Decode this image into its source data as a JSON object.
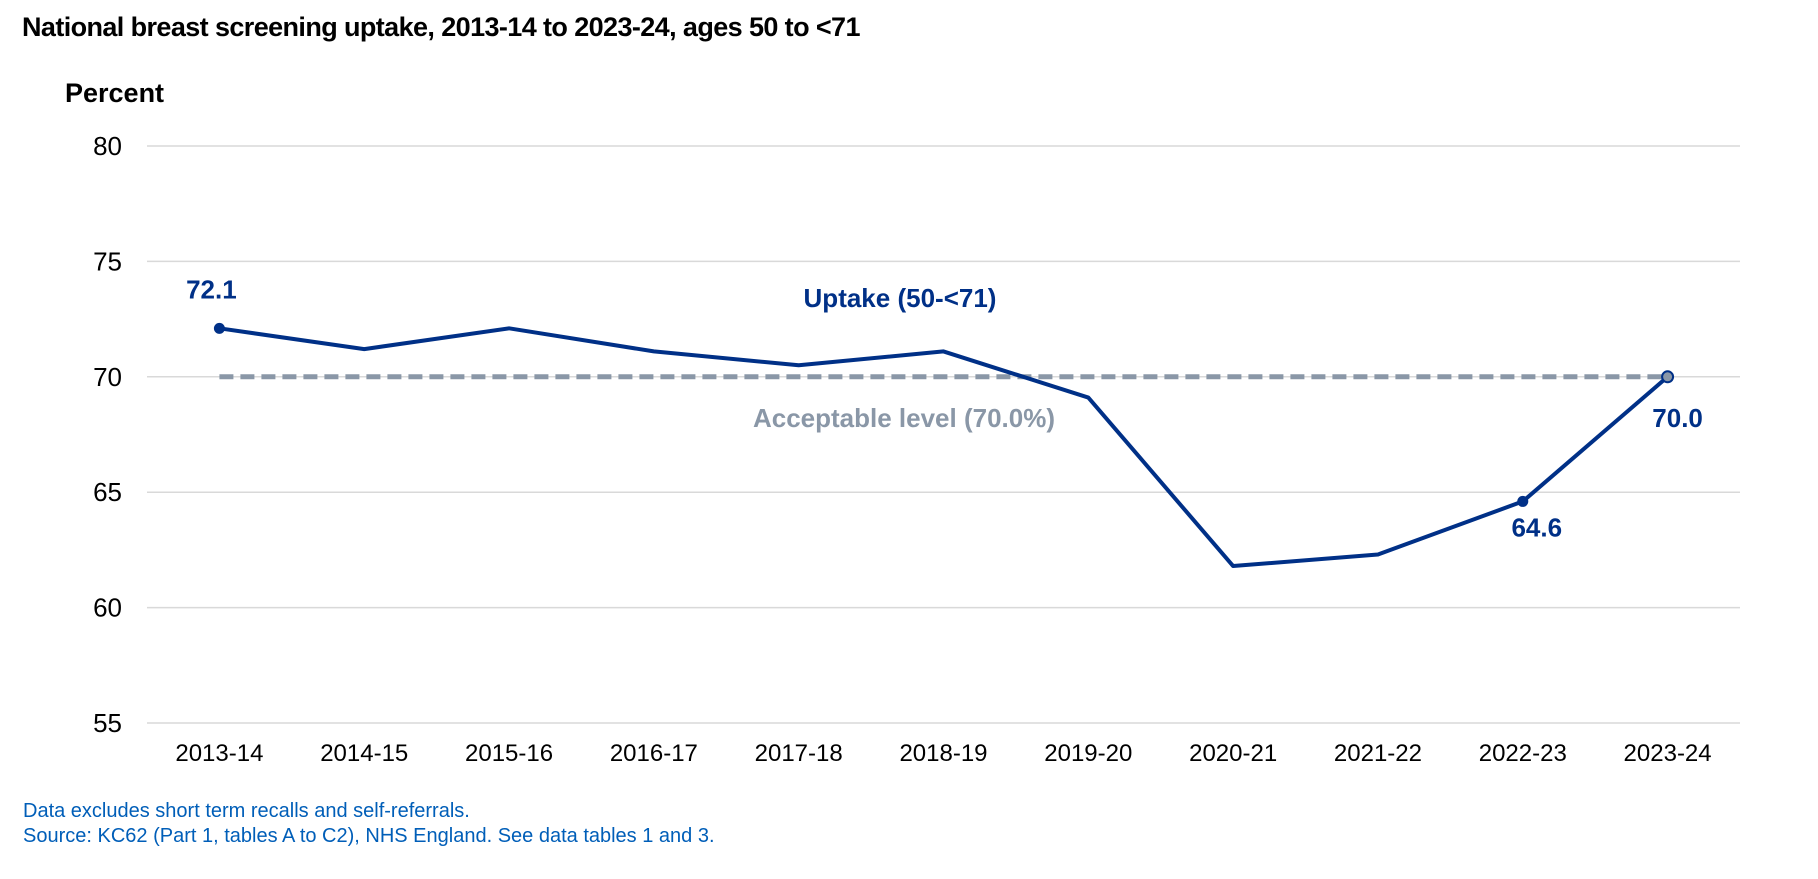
{
  "chart_data": {
    "type": "line",
    "title": "National breast screening uptake, 2013-14 to 2023-24, ages 50 to <71",
    "ylabel": "Percent",
    "xlabel": "",
    "ylim": [
      55,
      80
    ],
    "yticks": [
      "55",
      "60",
      "65",
      "70",
      "75",
      "80"
    ],
    "grid": "horizontal",
    "categories": [
      "2013-14",
      "2014-15",
      "2015-16",
      "2016-17",
      "2017-18",
      "2018-19",
      "2019-20",
      "2020-21",
      "2021-22",
      "2022-23",
      "2023-24"
    ],
    "series": [
      {
        "name": "Uptake (50-<71)",
        "color": "#003087",
        "values": [
          72.1,
          71.2,
          72.1,
          71.1,
          70.5,
          71.1,
          69.1,
          61.8,
          62.3,
          64.6,
          70.0
        ],
        "data_labels": [
          {
            "category": "2013-14",
            "value": 72.1,
            "text": "72.1"
          },
          {
            "category": "2022-23",
            "value": 64.6,
            "text": "64.6"
          },
          {
            "category": "2023-24",
            "value": 70.0,
            "text": "70.0"
          }
        ]
      }
    ],
    "reference_line": {
      "name": "Acceptable level (70.0%)",
      "value": 70.0,
      "color": "#8a97a7",
      "style": "dashed"
    }
  },
  "footnotes": {
    "line1": "Data excludes short term recalls and self-referrals.",
    "line2": "Source: KC62 (Part 1, tables A to C2), NHS England. See data tables 1 and 3.",
    "color": "#005eb8"
  }
}
